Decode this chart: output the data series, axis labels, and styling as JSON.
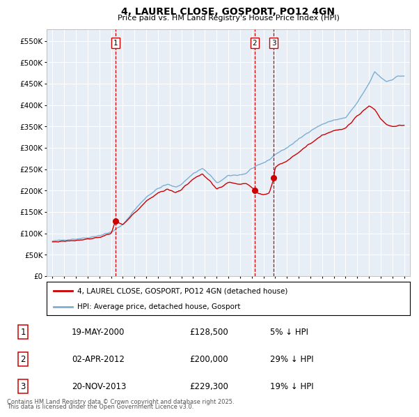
{
  "title": "4, LAUREL CLOSE, GOSPORT, PO12 4GN",
  "subtitle": "Price paid vs. HM Land Registry's House Price Index (HPI)",
  "legend_red": "4, LAUREL CLOSE, GOSPORT, PO12 4GN (detached house)",
  "legend_blue": "HPI: Average price, detached house, Gosport",
  "transactions": [
    {
      "num": "1",
      "date": "19-MAY-2000",
      "price": "£128,500",
      "change": "5% ↓ HPI",
      "year": 2000.38,
      "price_val": 128500
    },
    {
      "num": "2",
      "date": "02-APR-2012",
      "price": "£200,000",
      "change": "29% ↓ HPI",
      "year": 2012.25,
      "price_val": 200000
    },
    {
      "num": "3",
      "date": "20-NOV-2013",
      "price": "£229,300",
      "change": "19% ↓ HPI",
      "year": 2013.88,
      "price_val": 229300
    }
  ],
  "footer1": "Contains HM Land Registry data © Crown copyright and database right 2025.",
  "footer2": "This data is licensed under the Open Government Licence v3.0.",
  "ylim": [
    0,
    577000
  ],
  "xlim": [
    1994.5,
    2025.5
  ],
  "yticks": [
    0,
    50000,
    100000,
    150000,
    200000,
    250000,
    300000,
    350000,
    400000,
    450000,
    500000,
    550000
  ],
  "plot_bg": "#e8eef5",
  "grid_color": "#ffffff",
  "red_color": "#cc0000",
  "blue_color": "#7bafd4"
}
